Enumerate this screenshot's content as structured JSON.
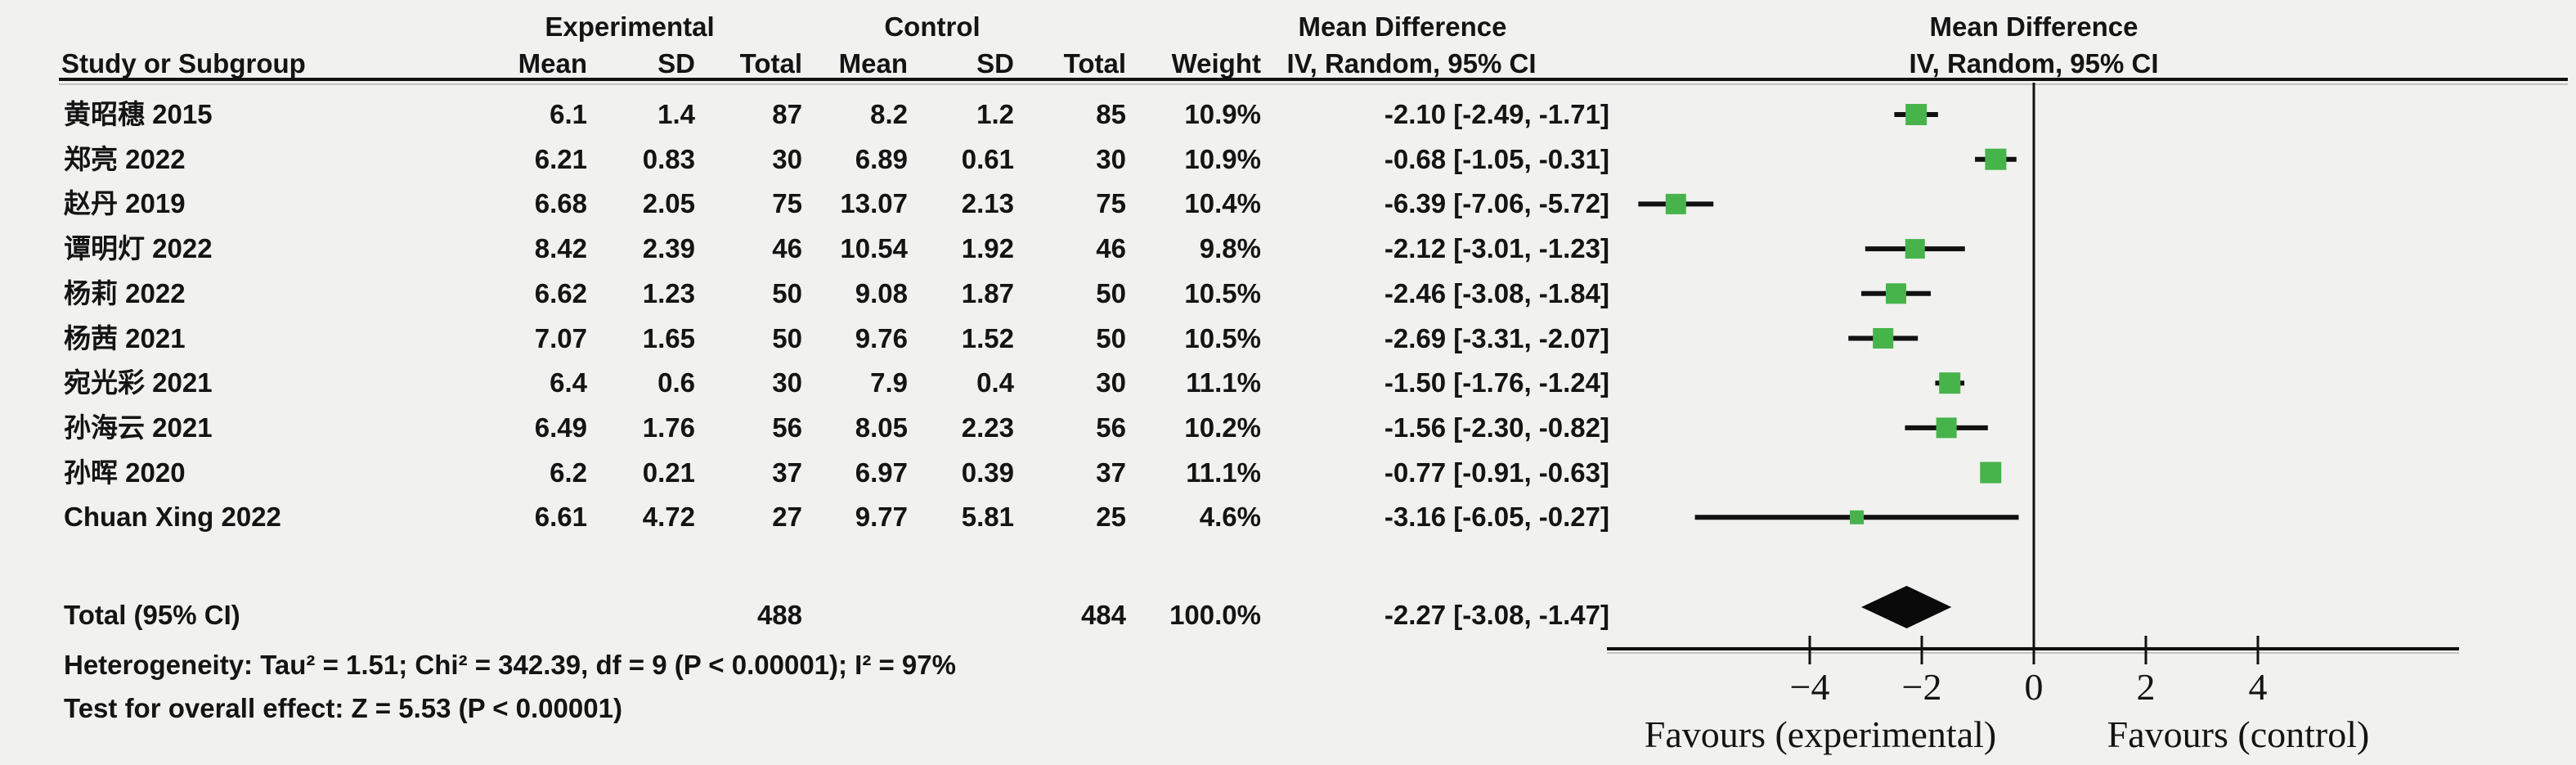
{
  "colors": {
    "background": "#f1f1ef",
    "ink": "#141414",
    "square_green": "#46b44b",
    "line_black": "#111111"
  },
  "header": {
    "group_experimental": "Experimental",
    "group_control": "Control",
    "group_md_table": "Mean Difference",
    "group_md_plot": "Mean Difference",
    "study": "Study or Subgroup",
    "mean_exp": "Mean",
    "sd_exp": "SD",
    "total_exp": "Total",
    "mean_ctl": "Mean",
    "sd_ctl": "SD",
    "total_ctl": "Total",
    "weight": "Weight",
    "ci_table": "IV, Random, 95% CI",
    "ci_plot": "IV, Random, 95% CI"
  },
  "studies": [
    {
      "name": "黄昭穗 2015",
      "mean_exp": "6.1",
      "sd_exp": "1.4",
      "total_exp": "87",
      "mean_ctl": "8.2",
      "sd_ctl": "1.2",
      "total_ctl": "85",
      "weight": "10.9%",
      "ci_text": "-2.10 [-2.49, -1.71]"
    },
    {
      "name": "郑亮 2022",
      "mean_exp": "6.21",
      "sd_exp": "0.83",
      "total_exp": "30",
      "mean_ctl": "6.89",
      "sd_ctl": "0.61",
      "total_ctl": "30",
      "weight": "10.9%",
      "ci_text": "-0.68 [-1.05, -0.31]"
    },
    {
      "name": "赵丹 2019",
      "mean_exp": "6.68",
      "sd_exp": "2.05",
      "total_exp": "75",
      "mean_ctl": "13.07",
      "sd_ctl": "2.13",
      "total_ctl": "75",
      "weight": "10.4%",
      "ci_text": "-6.39 [-7.06, -5.72]"
    },
    {
      "name": "谭明灯 2022",
      "mean_exp": "8.42",
      "sd_exp": "2.39",
      "total_exp": "46",
      "mean_ctl": "10.54",
      "sd_ctl": "1.92",
      "total_ctl": "46",
      "weight": "9.8%",
      "ci_text": "-2.12 [-3.01, -1.23]"
    },
    {
      "name": "杨莉 2022",
      "mean_exp": "6.62",
      "sd_exp": "1.23",
      "total_exp": "50",
      "mean_ctl": "9.08",
      "sd_ctl": "1.87",
      "total_ctl": "50",
      "weight": "10.5%",
      "ci_text": "-2.46 [-3.08, -1.84]"
    },
    {
      "name": "杨茜 2021",
      "mean_exp": "7.07",
      "sd_exp": "1.65",
      "total_exp": "50",
      "mean_ctl": "9.76",
      "sd_ctl": "1.52",
      "total_ctl": "50",
      "weight": "10.5%",
      "ci_text": "-2.69 [-3.31, -2.07]"
    },
    {
      "name": "宛光彩 2021",
      "mean_exp": "6.4",
      "sd_exp": "0.6",
      "total_exp": "30",
      "mean_ctl": "7.9",
      "sd_ctl": "0.4",
      "total_ctl": "30",
      "weight": "11.1%",
      "ci_text": "-1.50 [-1.76, -1.24]"
    },
    {
      "name": "孙海云 2021",
      "mean_exp": "6.49",
      "sd_exp": "1.76",
      "total_exp": "56",
      "mean_ctl": "8.05",
      "sd_ctl": "2.23",
      "total_ctl": "56",
      "weight": "10.2%",
      "ci_text": "-1.56 [-2.30, -0.82]"
    },
    {
      "name": "孙晖 2020",
      "mean_exp": "6.2",
      "sd_exp": "0.21",
      "total_exp": "37",
      "mean_ctl": "6.97",
      "sd_ctl": "0.39",
      "total_ctl": "37",
      "weight": "11.1%",
      "ci_text": "-0.77 [-0.91, -0.63]"
    },
    {
      "name": "Chuan Xing 2022",
      "mean_exp": "6.61",
      "sd_exp": "4.72",
      "total_exp": "27",
      "mean_ctl": "9.77",
      "sd_ctl": "5.81",
      "total_ctl": "25",
      "weight": "4.6%",
      "ci_text": "-3.16 [-6.05, -0.27]"
    }
  ],
  "total_row": {
    "label": "Total (95% CI)",
    "total_exp": "488",
    "total_ctl": "484",
    "weight": "100.0%",
    "ci_text": "-2.27 [-3.08, -1.47]"
  },
  "footnotes": {
    "heterogeneity": "Heterogeneity: Tau² = 1.51; Chi² = 342.39, df = 9 (P < 0.00001); I² = 97%",
    "overall_effect": "Test for overall effect: Z = 5.53 (P < 0.00001)"
  },
  "chart_data": {
    "type": "scatter",
    "variant": "forest plot (meta-analysis, mean difference, IV random effects)",
    "effect_measure": "Mean Difference, IV, Random, 95% CI",
    "xlim": [
      -7.6,
      7.6
    ],
    "zero_line": 0,
    "grid": false,
    "x_ticks": [
      {
        "v": -4,
        "label": "−4"
      },
      {
        "v": -2,
        "label": "−2"
      },
      {
        "v": 0,
        "label": "0"
      },
      {
        "v": 2,
        "label": "2"
      },
      {
        "v": 4,
        "label": "4"
      }
    ],
    "favours_left": "Favours (experimental)",
    "favours_right": "Favours (control)",
    "studies": [
      {
        "label": "黄昭穗 2015",
        "md": -2.1,
        "ci_low": -2.49,
        "ci_high": -1.71,
        "weight_pct": 10.9
      },
      {
        "label": "郑亮 2022",
        "md": -0.68,
        "ci_low": -1.05,
        "ci_high": -0.31,
        "weight_pct": 10.9
      },
      {
        "label": "赵丹 2019",
        "md": -6.39,
        "ci_low": -7.06,
        "ci_high": -5.72,
        "weight_pct": 10.4
      },
      {
        "label": "谭明灯 2022",
        "md": -2.12,
        "ci_low": -3.01,
        "ci_high": -1.23,
        "weight_pct": 9.8
      },
      {
        "label": "杨莉 2022",
        "md": -2.46,
        "ci_low": -3.08,
        "ci_high": -1.84,
        "weight_pct": 10.5
      },
      {
        "label": "杨茜 2021",
        "md": -2.69,
        "ci_low": -3.31,
        "ci_high": -2.07,
        "weight_pct": 10.5
      },
      {
        "label": "宛光彩 2021",
        "md": -1.5,
        "ci_low": -1.76,
        "ci_high": -1.24,
        "weight_pct": 11.1
      },
      {
        "label": "孙海云 2021",
        "md": -1.56,
        "ci_low": -2.3,
        "ci_high": -0.82,
        "weight_pct": 10.2
      },
      {
        "label": "孙晖 2020",
        "md": -0.77,
        "ci_low": -0.91,
        "ci_high": -0.63,
        "weight_pct": 11.1
      },
      {
        "label": "Chuan Xing 2022",
        "md": -3.16,
        "ci_low": -6.05,
        "ci_high": -0.27,
        "weight_pct": 4.6
      }
    ],
    "overall": {
      "label": "Total (95% CI)",
      "md": -2.27,
      "ci_low": -3.08,
      "ci_high": -1.47,
      "weight_pct": 100.0
    }
  }
}
